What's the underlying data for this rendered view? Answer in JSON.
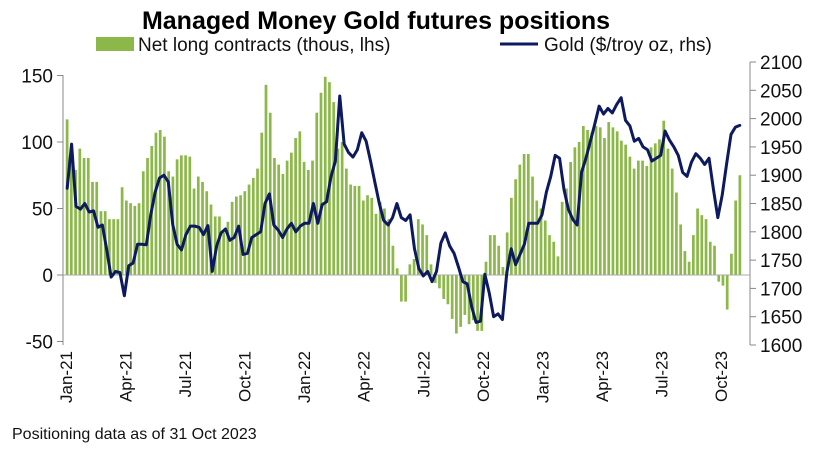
{
  "chart_data": {
    "type": "bar+line",
    "title": "Managed Money Gold futures positions",
    "footnote": "Positioning data as of 31 Oct 2023",
    "x_tick_labels": [
      "Jan-21",
      "Apr-21",
      "Jul-21",
      "Oct-21",
      "Jan-22",
      "Apr-22",
      "Jul-22",
      "Oct-22",
      "Jan-23",
      "Apr-23",
      "Jul-23",
      "Oct-23"
    ],
    "y_left": {
      "min": -50,
      "max": 150,
      "ticks": [
        -50,
        0,
        50,
        100,
        150
      ]
    },
    "y_right": {
      "min": 1600,
      "max": 2100,
      "ticks": [
        1600,
        1650,
        1700,
        1750,
        1800,
        1850,
        1900,
        1950,
        2000,
        2050,
        2100
      ]
    },
    "legend": [
      {
        "name": "Net long contracts (thous, lhs)",
        "kind": "bar",
        "color": "#8cb84a"
      },
      {
        "name": "Gold ($/troy oz, rhs)",
        "kind": "line",
        "color": "#0d1a5e"
      }
    ],
    "series": [
      {
        "name": "Net long contracts (thous, lhs)",
        "axis": "left",
        "values": [
          117,
          98,
          79,
          95,
          88,
          88,
          70,
          70,
          48,
          48,
          42,
          42,
          42,
          66,
          56,
          54,
          52,
          54,
          78,
          88,
          97,
          107,
          109,
          104,
          78,
          74,
          87,
          90,
          90,
          89,
          65,
          74,
          70,
          63,
          53,
          44,
          44,
          32,
          40,
          55,
          59,
          60,
          63,
          68,
          73,
          80,
          107,
          143,
          122,
          88,
          83,
          76,
          86,
          92,
          103,
          108,
          85,
          79,
          86,
          122,
          137,
          149,
          145,
          130,
          95,
          100,
          80,
          68,
          67,
          67,
          56,
          60,
          58,
          46,
          55,
          50,
          42,
          22,
          5,
          -20,
          -20,
          8,
          12,
          42,
          38,
          30,
          8,
          -6,
          -10,
          -18,
          -22,
          -33,
          -44,
          -39,
          -30,
          -37,
          -34,
          -42,
          -42,
          10,
          30,
          30,
          22,
          6,
          32,
          58,
          72,
          83,
          91,
          91,
          74,
          56,
          50,
          41,
          30,
          25,
          14,
          55,
          65,
          85,
          96,
          100,
          112,
          109,
          107,
          112,
          111,
          103,
          115,
          111,
          108,
          101,
          98,
          89,
          80,
          86,
          86,
          82,
          96,
          99,
          102,
          116,
          95,
          80,
          62,
          38,
          18,
          10,
          30,
          50,
          45,
          42,
          25,
          22,
          -5,
          -8,
          -26,
          16,
          56,
          75
        ],
        "color": "#8cb84a"
      },
      {
        "name": "Gold ($/troy oz, rhs)",
        "axis": "right",
        "values": [
          1877,
          1955,
          1845,
          1840,
          1850,
          1835,
          1837,
          1808,
          1812,
          1768,
          1720,
          1730,
          1728,
          1687,
          1740,
          1745,
          1778,
          1778,
          1777,
          1830,
          1870,
          1895,
          1900,
          1888,
          1813,
          1778,
          1768,
          1795,
          1810,
          1810,
          1808,
          1795,
          1811,
          1730,
          1775,
          1798,
          1805,
          1785,
          1790,
          1810,
          1760,
          1762,
          1790,
          1795,
          1800,
          1850,
          1867,
          1812,
          1803,
          1790,
          1805,
          1815,
          1800,
          1810,
          1815,
          1815,
          1850,
          1815,
          1848,
          1853,
          1897,
          1925,
          2040,
          1955,
          1940,
          1932,
          1945,
          1975,
          1960,
          1925,
          1887,
          1850,
          1820,
          1812,
          1825,
          1850,
          1825,
          1820,
          1830,
          1770,
          1735,
          1722,
          1730,
          1712,
          1730,
          1780,
          1798,
          1775,
          1762,
          1738,
          1712,
          1708,
          1668,
          1640,
          1642,
          1725,
          1692,
          1650,
          1655,
          1645,
          1728,
          1770,
          1742,
          1760,
          1778,
          1815,
          1815,
          1815,
          1830,
          1870,
          1898,
          1935,
          1930,
          1875,
          1840,
          1822,
          1812,
          1905,
          1930,
          1960,
          1990,
          2022,
          2008,
          2018,
          2010,
          2025,
          2037,
          1997,
          1987,
          1960,
          1965,
          1950,
          1945,
          1925,
          1930,
          1935,
          1978,
          1962,
          1950,
          1935,
          1905,
          1898,
          1923,
          1938,
          1930,
          1919,
          1930,
          1875,
          1825,
          1865,
          1920,
          1972,
          1985,
          1988
        ],
        "color": "#0d1a5e"
      }
    ]
  }
}
